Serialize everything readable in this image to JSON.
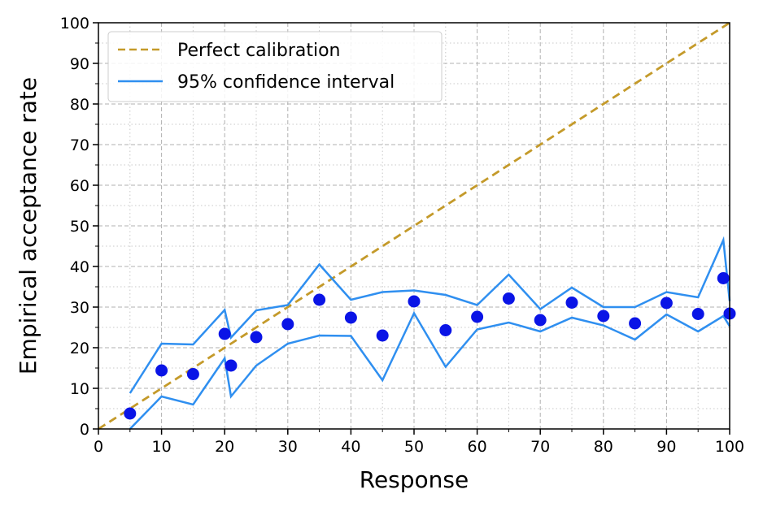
{
  "chart_data": {
    "type": "line",
    "title": "",
    "xlabel": "Response",
    "ylabel": "Empirical acceptance rate",
    "xlim": [
      0,
      100
    ],
    "ylim": [
      0,
      100
    ],
    "x_ticks": [
      0,
      10,
      20,
      30,
      40,
      50,
      60,
      70,
      80,
      90,
      100
    ],
    "y_ticks": [
      0,
      10,
      20,
      30,
      40,
      50,
      60,
      70,
      80,
      90,
      100
    ],
    "grid": "major dashed, minor dotted",
    "legend_position": "upper-left",
    "legend": {
      "calibration": "Perfect calibration",
      "ci": "95% confidence interval"
    },
    "colors": {
      "calibration": "#c49a2a",
      "ci": "#2f8ff0",
      "points": "#0a14e6"
    },
    "series": [
      {
        "name": "Perfect calibration",
        "style": "dashed",
        "x": [
          0,
          100
        ],
        "y": [
          0,
          100
        ]
      },
      {
        "name": "95% confidence interval",
        "style": "solid",
        "x": [
          5,
          10,
          15,
          20,
          21,
          25,
          30,
          35,
          40,
          45,
          50,
          55,
          60,
          65,
          70,
          75,
          80,
          85,
          90,
          95,
          99,
          100
        ],
        "upper": [
          8.8,
          21.0,
          20.8,
          29.3,
          22.5,
          29.2,
          30.5,
          40.5,
          31.8,
          33.7,
          34.1,
          33.0,
          30.5,
          38.0,
          29.5,
          34.8,
          30.0,
          30.0,
          33.7,
          32.4,
          46.5,
          31.5
        ],
        "lower": [
          0.0,
          8.0,
          6.0,
          17.4,
          8.0,
          15.6,
          21.0,
          23.0,
          22.9,
          12.0,
          28.5,
          15.3,
          24.5,
          26.2,
          24.0,
          27.4,
          25.5,
          22.0,
          28.2,
          24.0,
          27.8,
          25.3
        ]
      },
      {
        "name": "",
        "style": "markers",
        "x": [
          5,
          10,
          15,
          20,
          21,
          25,
          30,
          35,
          40,
          45,
          50,
          55,
          60,
          65,
          70,
          75,
          80,
          85,
          90,
          95,
          99,
          100
        ],
        "y": [
          3.8,
          14.4,
          13.5,
          23.4,
          15.6,
          22.6,
          25.8,
          31.8,
          27.4,
          23.0,
          31.4,
          24.3,
          27.6,
          32.1,
          26.8,
          31.1,
          27.8,
          26.0,
          31.0,
          28.3,
          37.1,
          28.4
        ]
      }
    ]
  }
}
